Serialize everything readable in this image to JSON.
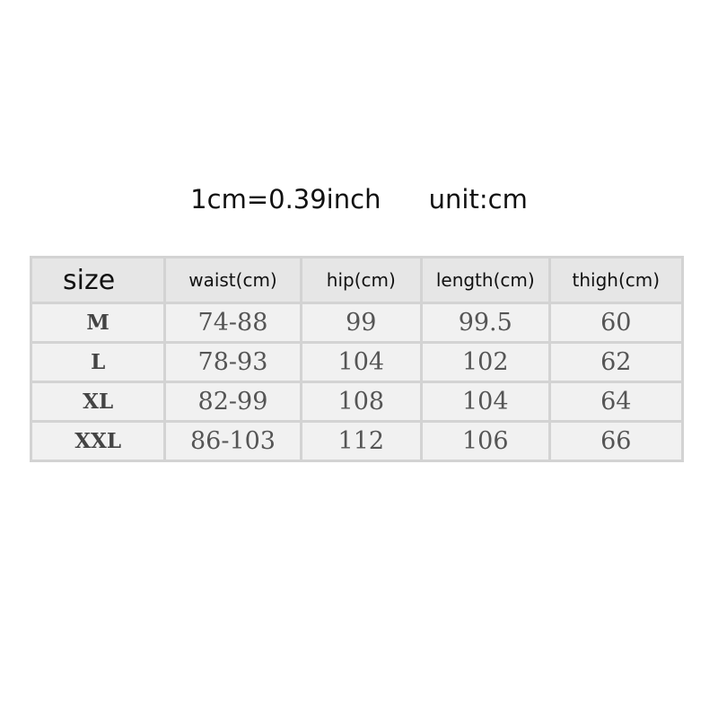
{
  "note": {
    "conversion": "1cm=0.39inch",
    "unit": "unit:cm"
  },
  "table": {
    "headers": [
      "size",
      "waist(cm)",
      "hip(cm)",
      "length(cm)",
      "thigh(cm)"
    ],
    "rows": [
      [
        "M",
        "74-88",
        "99",
        "99.5",
        "60"
      ],
      [
        "L",
        "78-93",
        "104",
        "102",
        "62"
      ],
      [
        "XL",
        "82-99",
        "108",
        "104",
        "64"
      ],
      [
        "XXL",
        "86-103",
        "112",
        "106",
        "66"
      ]
    ]
  }
}
